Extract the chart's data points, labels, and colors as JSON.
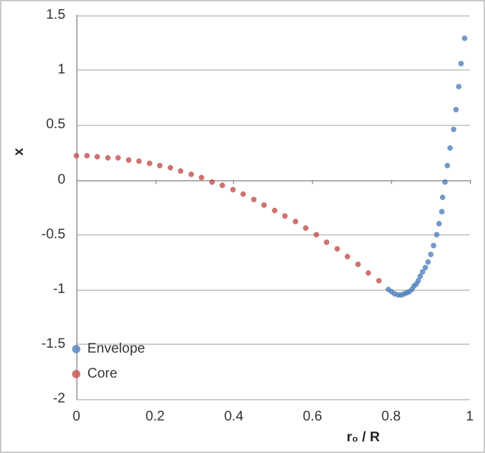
{
  "chart_data": {
    "type": "scatter",
    "xlabel": "r₀ / R",
    "ylabel": "x",
    "xlim": [
      0,
      1
    ],
    "xticks": [
      0,
      0.2,
      0.4,
      0.6,
      0.8,
      1
    ],
    "ylim": [
      -2,
      1.5
    ],
    "yticks": [
      -2,
      -1.5,
      -1,
      -0.5,
      0,
      0.5,
      1,
      1.5
    ],
    "grid": "y",
    "legend": "bottom left",
    "marker": "circle",
    "series": [
      {
        "name": "Envelope",
        "color": "#4f81bd",
        "x": [
          0.793,
          0.801,
          0.809,
          0.818,
          0.826,
          0.833,
          0.84,
          0.846,
          0.853,
          0.858,
          0.864,
          0.869,
          0.874,
          0.88,
          0.887,
          0.894,
          0.901,
          0.908,
          0.916,
          0.922,
          0.929,
          0.931,
          0.937,
          0.943,
          0.95,
          0.959,
          0.965,
          0.972,
          0.978,
          0.987
        ],
        "values": [
          -1.0,
          -1.02,
          -1.04,
          -1.05,
          -1.05,
          -1.04,
          -1.03,
          -1.02,
          -1.0,
          -0.97,
          -0.95,
          -0.92,
          -0.88,
          -0.84,
          -0.8,
          -0.75,
          -0.68,
          -0.6,
          -0.5,
          -0.4,
          -0.29,
          -0.16,
          -0.02,
          0.13,
          0.29,
          0.46,
          0.64,
          0.85,
          1.06,
          1.29
        ]
      },
      {
        "name": "Core",
        "color": "#c0504d",
        "x": [
          0,
          0.027,
          0.053,
          0.08,
          0.106,
          0.133,
          0.159,
          0.186,
          0.212,
          0.239,
          0.265,
          0.292,
          0.318,
          0.345,
          0.371,
          0.398,
          0.424,
          0.451,
          0.477,
          0.504,
          0.53,
          0.557,
          0.583,
          0.61,
          0.636,
          0.663,
          0.689,
          0.716,
          0.742,
          0.769
        ],
        "values": [
          0.22,
          0.22,
          0.21,
          0.2,
          0.2,
          0.18,
          0.17,
          0.15,
          0.13,
          0.11,
          0.08,
          0.05,
          0.02,
          -0.02,
          -0.05,
          -0.09,
          -0.13,
          -0.18,
          -0.23,
          -0.28,
          -0.33,
          -0.38,
          -0.44,
          -0.5,
          -0.57,
          -0.63,
          -0.7,
          -0.77,
          -0.85,
          -0.92
        ]
      }
    ]
  }
}
